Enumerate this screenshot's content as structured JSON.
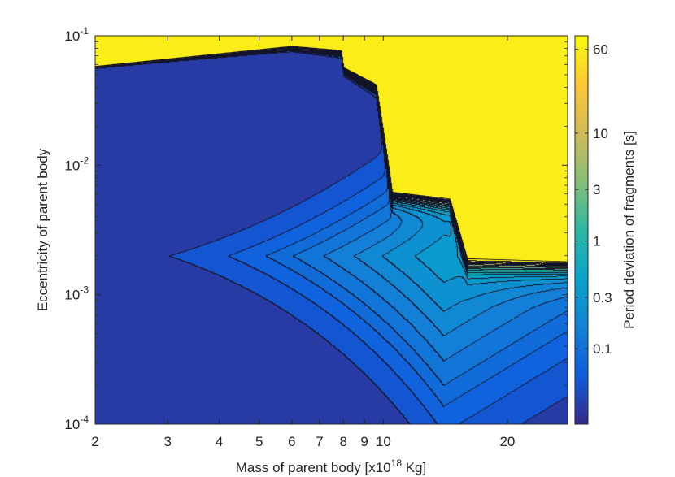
{
  "chart_data": {
    "type": "heatmap",
    "subtype": "filled-contour",
    "xlabel_parts": [
      "Mass of parent body [x10",
      "18",
      " Kg]"
    ],
    "ylabel_parts": [
      "Eccentricity of parent body"
    ],
    "colorbar_label": "Period deviation of fragments [s]",
    "x_scale": "log",
    "y_scale": "log",
    "xlim": [
      2,
      28
    ],
    "ylim": [
      0.0001,
      0.1
    ],
    "x_ticks": [
      {
        "value": 2,
        "label": "2"
      },
      {
        "value": 3,
        "label": "3"
      },
      {
        "value": 4,
        "label": "4"
      },
      {
        "value": 5,
        "label": "5"
      },
      {
        "value": 6,
        "label": "6"
      },
      {
        "value": 7,
        "label": "7"
      },
      {
        "value": 8,
        "label": "8"
      },
      {
        "value": 9,
        "label": "9"
      },
      {
        "value": 10,
        "label": "10"
      },
      {
        "value": 20,
        "label": "20"
      }
    ],
    "y_ticks": [
      {
        "value": 0.0001,
        "base": "10",
        "exp": "-4"
      },
      {
        "value": 0.001,
        "base": "10",
        "exp": "-3"
      },
      {
        "value": 0.01,
        "base": "10",
        "exp": "-2"
      },
      {
        "value": 0.1,
        "base": "10",
        "exp": "-1"
      }
    ],
    "colorbar": {
      "scale": "log",
      "range": [
        0.02,
        80
      ],
      "ticks": [
        {
          "value": 0.1,
          "label": "0.1"
        },
        {
          "value": 0.3,
          "label": "0.3"
        },
        {
          "value": 1,
          "label": "1"
        },
        {
          "value": 3,
          "label": "3"
        },
        {
          "value": 10,
          "label": "10"
        },
        {
          "value": 60,
          "label": "60"
        }
      ],
      "colormap": "parula",
      "colormap_stops": [
        "#352a87",
        "#0f5cdd",
        "#1481d6",
        "#06a4ca",
        "#2eb7a4",
        "#87bf77",
        "#d1bb59",
        "#fec832",
        "#f9fb0e"
      ]
    },
    "contour_levels": [
      0.04,
      0.06,
      0.08,
      0.1,
      0.13,
      0.17,
      0.22,
      0.3,
      0.4,
      0.55,
      0.75,
      1.0,
      1.4,
      2,
      3,
      5,
      8,
      13,
      22,
      40
    ],
    "saturated_value": 60,
    "transition_boundary": [
      {
        "mass": 2,
        "ecc": 0.058
      },
      {
        "mass": 6,
        "ecc": 0.083
      },
      {
        "mass": 7.9,
        "ecc": 0.077
      },
      {
        "mass": 8.0,
        "ecc": 0.057
      },
      {
        "mass": 9.6,
        "ecc": 0.042
      },
      {
        "mass": 10.2,
        "ecc": 0.012
      },
      {
        "mass": 10.5,
        "ecc": 0.0062
      },
      {
        "mass": 14.5,
        "ecc": 0.0055
      },
      {
        "mass": 16,
        "ecc": 0.0019
      },
      {
        "mass": 28,
        "ecc": 0.0018
      }
    ],
    "low_deviation_minimum": {
      "mass": 2,
      "ecc": 0.0001,
      "value": 0.03
    },
    "mid_plateau": {
      "mass": 14,
      "ecc": 0.002,
      "value": 1.5
    },
    "ridge_eccentricity": 0.002
  }
}
